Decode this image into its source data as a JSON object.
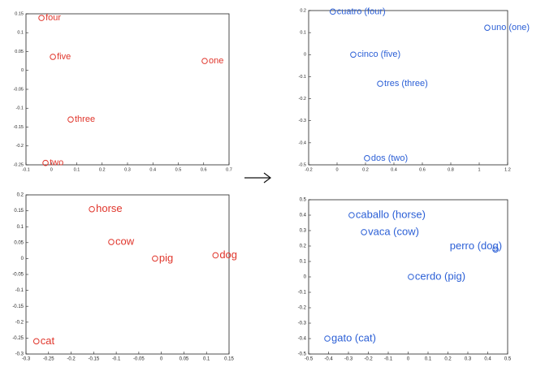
{
  "chart_data": [
    {
      "type": "scatter",
      "color": "#e0352b",
      "x": [
        -0.039,
        0.006,
        0.604,
        0.076,
        -0.023
      ],
      "values": [
        0.139,
        0.036,
        0.025,
        -0.13,
        -0.245
      ],
      "labels": [
        "four",
        "five",
        "one",
        "three",
        "two"
      ],
      "xlim": [
        -0.1,
        0.7
      ],
      "xticks": [
        -0.1,
        0,
        0.1,
        0.2,
        0.3,
        0.4,
        0.5,
        0.6,
        0.7
      ],
      "ylim": [
        -0.25,
        0.15
      ],
      "yticks": [
        -0.25,
        -0.2,
        -0.15,
        -0.1,
        -0.05,
        0,
        0.05,
        0.1,
        0.15
      ]
    },
    {
      "type": "scatter",
      "color": "#2b5fd6",
      "x": [
        -0.03,
        1.057,
        0.114,
        0.303,
        0.211
      ],
      "values": [
        0.195,
        0.122,
        0.0,
        -0.132,
        -0.47
      ],
      "labels": [
        "cuatro (four)",
        "uno (one)",
        "cinco (five)",
        "tres (three)",
        "dos (two)"
      ],
      "xlim": [
        -0.2,
        1.2
      ],
      "xticks": [
        -0.2,
        0,
        0.2,
        0.4,
        0.6,
        0.8,
        1,
        1.2
      ],
      "ylim": [
        -0.5,
        0.2
      ],
      "yticks": [
        -0.5,
        -0.4,
        -0.3,
        -0.2,
        -0.1,
        0,
        0.1,
        0.2
      ]
    },
    {
      "type": "scatter",
      "color": "#e0352b",
      "x": [
        -0.154,
        -0.111,
        -0.014,
        0.12,
        -0.277
      ],
      "values": [
        0.155,
        0.052,
        0.0,
        0.01,
        -0.26
      ],
      "labels": [
        "horse",
        "cow",
        "pig",
        "dog",
        "cat"
      ],
      "xlim": [
        -0.3,
        0.15
      ],
      "xticks": [
        -0.3,
        -0.25,
        -0.2,
        -0.15,
        -0.1,
        -0.05,
        0,
        0.05,
        0.1,
        0.15
      ],
      "ylim": [
        -0.3,
        0.2
      ],
      "yticks": [
        -0.3,
        -0.25,
        -0.2,
        -0.15,
        -0.1,
        -0.05,
        0,
        0.05,
        0.1,
        0.15,
        0.2
      ]
    },
    {
      "type": "scatter",
      "color": "#2b5fd6",
      "x": [
        -0.284,
        -0.222,
        0.439,
        0.014,
        -0.406
      ],
      "values": [
        0.4,
        0.29,
        0.177,
        0.0,
        -0.4
      ],
      "labels": [
        "caballo (horse)",
        "vaca (cow)",
        "perro (dog)",
        "cerdo (pig)",
        "gato (cat)"
      ],
      "xlim": [
        -0.5,
        0.5
      ],
      "xticks": [
        -0.5,
        -0.4,
        -0.3,
        -0.2,
        -0.1,
        0,
        0.1,
        0.2,
        0.3,
        0.4,
        0.5
      ],
      "ylim": [
        -0.5,
        0.5
      ],
      "yticks": [
        -0.5,
        -0.4,
        -0.3,
        -0.2,
        -0.1,
        0,
        0.1,
        0.2,
        0.3,
        0.4,
        0.5
      ]
    }
  ]
}
